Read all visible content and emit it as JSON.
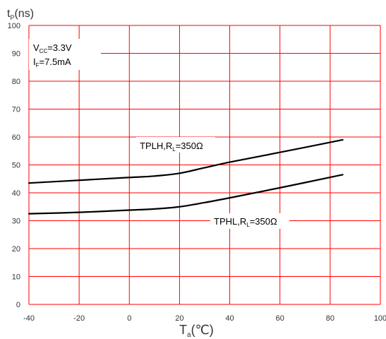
{
  "chart_data": {
    "type": "line",
    "ylabel": {
      "main": "t",
      "sub": "P",
      "unit": "(ns)"
    },
    "xlabel": {
      "main": "T",
      "sub": "a",
      "unit": "(℃)"
    },
    "xlim": [
      -40,
      100
    ],
    "ylim": [
      0,
      100
    ],
    "x_ticks": [
      -40,
      -20,
      0,
      20,
      40,
      60,
      80,
      100
    ],
    "y_ticks": [
      0,
      10,
      20,
      30,
      40,
      50,
      60,
      70,
      80,
      90,
      100
    ],
    "grid": true,
    "grid_color": "#ff0000",
    "line_color": "#000000",
    "conditions": [
      {
        "main": "V",
        "sub": "CC",
        "rest": "=3.3V"
      },
      {
        "main": "I",
        "sub": "F",
        "rest": "=7.5mA"
      }
    ],
    "series": [
      {
        "name": "TPLH,RL=350Ω",
        "label_parts": {
          "main": "TPLH,R",
          "sub": "L",
          "rest": "=350Ω"
        },
        "x": [
          -40,
          -20,
          0,
          10,
          20,
          30,
          40,
          60,
          85
        ],
        "y": [
          43.5,
          44.5,
          45.5,
          46.0,
          47.0,
          49.0,
          51.0,
          54.5,
          59.0
        ]
      },
      {
        "name": "TPHL,RL=350Ω",
        "label_parts": {
          "main": "TPHL,R",
          "sub": "L",
          "rest": "=350Ω"
        },
        "x": [
          -40,
          -20,
          0,
          10,
          20,
          30,
          40,
          60,
          85
        ],
        "y": [
          32.5,
          33.0,
          33.8,
          34.2,
          35.0,
          36.5,
          38.2,
          41.8,
          46.5
        ]
      }
    ]
  }
}
